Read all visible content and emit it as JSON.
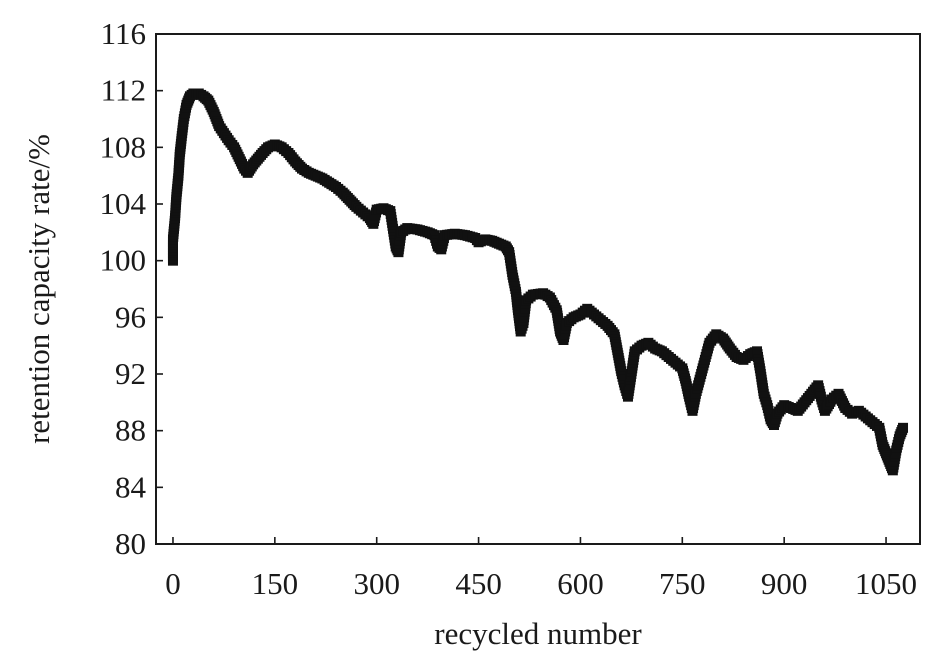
{
  "chart_data": {
    "type": "scatter",
    "xlabel": "recycled number",
    "ylabel": "retention capacity rate/%",
    "xlim": [
      -25,
      1100
    ],
    "ylim": [
      80,
      116
    ],
    "xticks": [
      0,
      150,
      300,
      450,
      600,
      750,
      900,
      1050
    ],
    "xtick_labels": [
      "0",
      "150",
      "300",
      "450",
      "600",
      "750",
      "900",
      "1050"
    ],
    "yticks": [
      80,
      84,
      88,
      92,
      96,
      100,
      104,
      108,
      112,
      116
    ],
    "ytick_labels": [
      "80",
      "84",
      "88",
      "92",
      "96",
      "100",
      "104",
      "108",
      "112",
      "116"
    ],
    "grid": false,
    "marker_color": "#111111",
    "series": [
      {
        "points": [
          [
            0,
            100
          ],
          [
            0,
            101.5
          ],
          [
            3,
            103
          ],
          [
            5,
            104.5
          ],
          [
            8,
            106
          ],
          [
            10,
            107.5
          ],
          [
            13,
            108.8
          ],
          [
            16,
            110
          ],
          [
            20,
            111
          ],
          [
            25,
            111.6
          ],
          [
            30,
            111.8
          ],
          [
            38,
            111.8
          ],
          [
            45,
            111.6
          ],
          [
            52,
            111.3
          ],
          [
            60,
            110.5
          ],
          [
            68,
            109.5
          ],
          [
            75,
            109
          ],
          [
            82,
            108.5
          ],
          [
            90,
            108
          ],
          [
            95,
            107.5
          ],
          [
            100,
            107
          ],
          [
            105,
            106.5
          ],
          [
            110,
            106.2
          ],
          [
            118,
            106.8
          ],
          [
            125,
            107.2
          ],
          [
            132,
            107.6
          ],
          [
            140,
            108
          ],
          [
            150,
            108.2
          ],
          [
            160,
            108
          ],
          [
            170,
            107.6
          ],
          [
            180,
            107
          ],
          [
            190,
            106.5
          ],
          [
            200,
            106.2
          ],
          [
            210,
            106
          ],
          [
            220,
            105.8
          ],
          [
            230,
            105.5
          ],
          [
            240,
            105.2
          ],
          [
            250,
            104.8
          ],
          [
            260,
            104.3
          ],
          [
            270,
            103.8
          ],
          [
            280,
            103.4
          ],
          [
            290,
            103
          ],
          [
            295,
            102.6
          ],
          [
            300,
            103.6
          ],
          [
            310,
            103.7
          ],
          [
            320,
            103.5
          ],
          [
            328,
            101
          ],
          [
            332,
            100.6
          ],
          [
            336,
            102
          ],
          [
            345,
            102.3
          ],
          [
            360,
            102.2
          ],
          [
            375,
            102
          ],
          [
            385,
            101.8
          ],
          [
            390,
            101
          ],
          [
            395,
            100.8
          ],
          [
            400,
            101.8
          ],
          [
            415,
            101.9
          ],
          [
            430,
            101.8
          ],
          [
            445,
            101.6
          ],
          [
            450,
            101.3
          ],
          [
            460,
            101.5
          ],
          [
            470,
            101.4
          ],
          [
            480,
            101.2
          ],
          [
            490,
            101
          ],
          [
            495,
            100.6
          ],
          [
            500,
            99
          ],
          [
            505,
            97.8
          ],
          [
            508,
            96.5
          ],
          [
            512,
            95
          ],
          [
            516,
            95.6
          ],
          [
            520,
            97.2
          ],
          [
            530,
            97.6
          ],
          [
            545,
            97.7
          ],
          [
            555,
            97.4
          ],
          [
            565,
            96.5
          ],
          [
            570,
            95
          ],
          [
            575,
            94.4
          ],
          [
            580,
            95.6
          ],
          [
            590,
            96
          ],
          [
            600,
            96.2
          ],
          [
            610,
            96.6
          ],
          [
            620,
            96.2
          ],
          [
            630,
            95.8
          ],
          [
            640,
            95.4
          ],
          [
            650,
            94.8
          ],
          [
            655,
            93.5
          ],
          [
            660,
            92.2
          ],
          [
            665,
            91.2
          ],
          [
            670,
            90.4
          ],
          [
            675,
            92
          ],
          [
            680,
            93.6
          ],
          [
            690,
            94
          ],
          [
            700,
            94.2
          ],
          [
            710,
            93.8
          ],
          [
            720,
            93.6
          ],
          [
            730,
            93.2
          ],
          [
            740,
            92.8
          ],
          [
            750,
            92.4
          ],
          [
            755,
            91.5
          ],
          [
            760,
            90.4
          ],
          [
            765,
            89.4
          ],
          [
            770,
            90.6
          ],
          [
            780,
            92.4
          ],
          [
            790,
            94.2
          ],
          [
            800,
            94.8
          ],
          [
            810,
            94.5
          ],
          [
            820,
            93.8
          ],
          [
            830,
            93.2
          ],
          [
            840,
            93
          ],
          [
            850,
            93.4
          ],
          [
            860,
            93.6
          ],
          [
            865,
            92.2
          ],
          [
            870,
            90.6
          ],
          [
            875,
            89.8
          ],
          [
            880,
            88.8
          ],
          [
            885,
            88.4
          ],
          [
            890,
            89.2
          ],
          [
            900,
            89.8
          ],
          [
            910,
            89.6
          ],
          [
            920,
            89.4
          ],
          [
            930,
            90
          ],
          [
            940,
            90.6
          ],
          [
            950,
            91.2
          ],
          [
            955,
            90.2
          ],
          [
            960,
            89.4
          ],
          [
            970,
            90.2
          ],
          [
            980,
            90.6
          ],
          [
            990,
            89.6
          ],
          [
            1000,
            89.2
          ],
          [
            1010,
            89.4
          ],
          [
            1020,
            89
          ],
          [
            1030,
            88.6
          ],
          [
            1040,
            88.2
          ],
          [
            1045,
            87
          ],
          [
            1050,
            86.4
          ],
          [
            1055,
            85.8
          ],
          [
            1060,
            85.2
          ],
          [
            1065,
            86.6
          ],
          [
            1070,
            87.6
          ],
          [
            1075,
            88.2
          ]
        ]
      }
    ]
  }
}
